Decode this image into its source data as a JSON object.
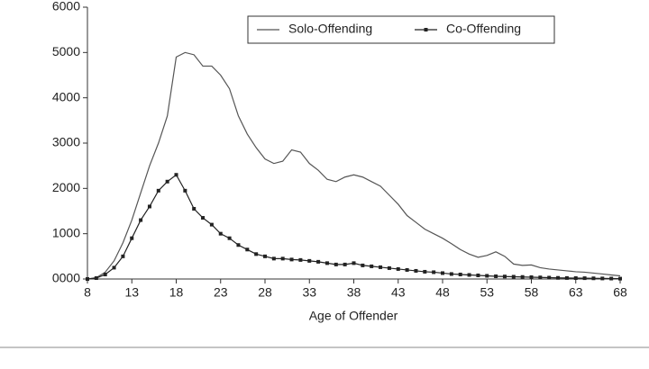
{
  "chart_data": {
    "type": "line",
    "x_label": "Age of Offender",
    "x": [
      8,
      9,
      10,
      11,
      12,
      13,
      14,
      15,
      16,
      17,
      18,
      19,
      20,
      21,
      22,
      23,
      24,
      25,
      26,
      27,
      28,
      29,
      30,
      31,
      32,
      33,
      34,
      35,
      36,
      37,
      38,
      39,
      40,
      41,
      42,
      43,
      44,
      45,
      46,
      47,
      48,
      49,
      50,
      51,
      52,
      53,
      54,
      55,
      56,
      57,
      58,
      59,
      60,
      61,
      62,
      63,
      64,
      65,
      66,
      67,
      68
    ],
    "series": [
      {
        "name": "Solo-Offending",
        "color": "#555555",
        "marker": false,
        "values": [
          0,
          30,
          150,
          400,
          800,
          1300,
          1900,
          2500,
          3000,
          3600,
          4900,
          5000,
          4950,
          4700,
          4700,
          4500,
          4200,
          3600,
          3200,
          2900,
          2650,
          2550,
          2600,
          2850,
          2800,
          2550,
          2400,
          2200,
          2150,
          2250,
          2300,
          2250,
          2150,
          2050,
          1850,
          1650,
          1400,
          1250,
          1100,
          1000,
          900,
          780,
          650,
          550,
          480,
          520,
          600,
          500,
          330,
          300,
          310,
          250,
          220,
          200,
          180,
          160,
          150,
          130,
          110,
          90,
          70
        ]
      },
      {
        "name": "Co-Offending",
        "color": "#222222",
        "marker": true,
        "values": [
          0,
          20,
          100,
          250,
          500,
          900,
          1300,
          1600,
          1950,
          2150,
          2300,
          1950,
          1550,
          1350,
          1200,
          1000,
          900,
          750,
          650,
          550,
          500,
          450,
          450,
          430,
          420,
          400,
          380,
          350,
          320,
          320,
          350,
          300,
          280,
          260,
          240,
          220,
          200,
          180,
          160,
          150,
          130,
          110,
          100,
          90,
          80,
          70,
          60,
          55,
          50,
          45,
          40,
          35,
          30,
          25,
          22,
          20,
          18,
          15,
          12,
          10,
          8
        ]
      }
    ],
    "xlim": [
      8,
      68
    ],
    "xticks": [
      8,
      13,
      18,
      23,
      28,
      33,
      38,
      43,
      48,
      53,
      58,
      63,
      68
    ],
    "ylim": [
      0,
      6000
    ],
    "yticks": [
      {
        "value": 0,
        "label": "0000"
      },
      1000,
      2000,
      3000,
      4000,
      5000,
      6000
    ],
    "grid": false,
    "legend": "upper right"
  }
}
